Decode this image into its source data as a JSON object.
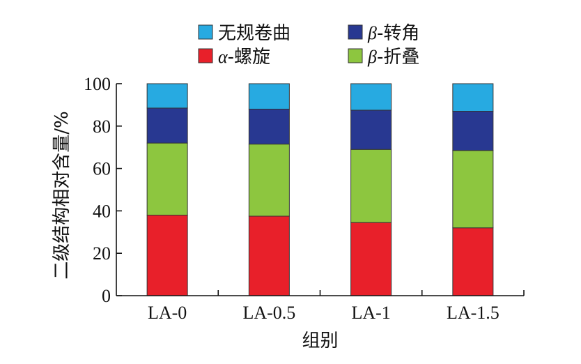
{
  "chart_data": {
    "type": "bar",
    "stacked": true,
    "categories": [
      "LA-0",
      "LA-0.5",
      "LA-1",
      "LA-1.5"
    ],
    "series": [
      {
        "name": "α-螺旋",
        "greek": "α",
        "suffix": "-螺旋",
        "color": "#e8202a",
        "values": [
          38.0,
          37.5,
          34.5,
          32.0
        ]
      },
      {
        "name": "β-折叠",
        "greek": "β",
        "suffix": "-折叠",
        "color": "#8dc63f",
        "values": [
          34.0,
          34.0,
          34.5,
          36.5
        ]
      },
      {
        "name": "β-转角",
        "greek": "β",
        "suffix": "-转角",
        "color": "#283891",
        "values": [
          16.5,
          16.5,
          18.5,
          18.5
        ]
      },
      {
        "name": "无规卷曲",
        "greek": "",
        "suffix": "无规卷曲",
        "color": "#27aae1",
        "values": [
          11.5,
          12.0,
          12.5,
          13.0
        ]
      }
    ],
    "legend_order": [
      3,
      2,
      0,
      1
    ],
    "legend_position": "top",
    "xlabel": "组别",
    "ylabel": "二级结构相对含量/%",
    "ylim": [
      0,
      100
    ],
    "yticks": [
      0,
      20,
      40,
      60,
      80,
      100
    ],
    "grid": false
  }
}
